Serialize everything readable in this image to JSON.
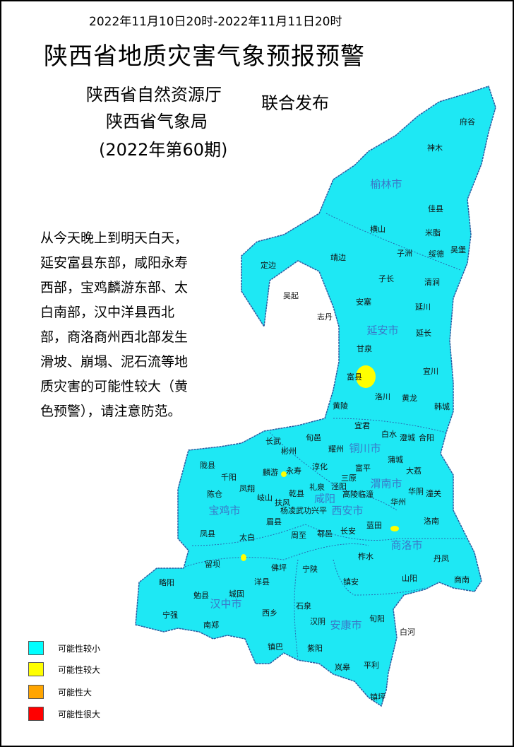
{
  "header": {
    "period": "2022年11月10日20时-2022年11月11日20时",
    "title": "陕西省地质灾害气象预报预警",
    "publishers": [
      "陕西省自然资源厅",
      "陕西省气象局"
    ],
    "issue": "(2022年第60期)",
    "joint_label": "联合发布"
  },
  "message_lines": [
    "从今天晚上到明天白天，",
    "延安富县东部，咸阳永寿",
    "西部，宝鸡麟游东部、太",
    "白南部，汉中洋县西北",
    "部，商洛商州西北部发生",
    "滑坡、崩塌、泥石流等地",
    "质灾害的可能性较大（黄",
    "色预警），请注意防范。"
  ],
  "map": {
    "base_color": "#1ee8f4",
    "warning_color": "#ffff00",
    "cities": [
      "榆林市",
      "延安市",
      "铜川市",
      "渭南市",
      "咸阳",
      "西安市",
      "宝鸡市",
      "商洛市",
      "汉中市",
      "安康市"
    ],
    "counties": [
      "府谷",
      "神木",
      "佳县",
      "横山",
      "米脂",
      "吴堡",
      "绥德",
      "子洲",
      "定边",
      "靖边",
      "子长",
      "清涧",
      "吴起",
      "安塞",
      "延川",
      "志丹",
      "延长",
      "甘泉",
      "富县",
      "宜川",
      "洛川",
      "黄龙",
      "韩城",
      "黄陵",
      "宜君",
      "白水",
      "澄城",
      "合阳",
      "长武",
      "彬州",
      "旬邑",
      "耀州",
      "蒲城",
      "陇县",
      "千阳",
      "麟游",
      "永寿",
      "淳化",
      "富平",
      "三原",
      "大荔",
      "凤翔",
      "陈仓",
      "礼泉",
      "泾阳",
      "岐山",
      "乾县",
      "高陵临潼",
      "华阴",
      "潼关",
      "扶风",
      "杨凌武功兴平",
      "华州",
      "眉县",
      "凤县",
      "太白",
      "周至",
      "鄠邑",
      "长安",
      "蓝田",
      "洛南",
      "柞水",
      "丹凤",
      "留坝",
      "佛坪",
      "宁陕",
      "略阳",
      "洋县",
      "镇安",
      "山阳",
      "商南",
      "勉县",
      "城固",
      "石泉",
      "西乡",
      "宁强",
      "南郑",
      "汉阴",
      "旬阳",
      "白河",
      "镇巴",
      "紫阳",
      "岚皋",
      "平利",
      "镇坪"
    ]
  },
  "legend": [
    {
      "label": "可能性较小",
      "color": "#00ffff"
    },
    {
      "label": "可能性较大",
      "color": "#ffff00"
    },
    {
      "label": "可能性大",
      "color": "#ffa500"
    },
    {
      "label": "可能性很大",
      "color": "#ff0000"
    }
  ]
}
